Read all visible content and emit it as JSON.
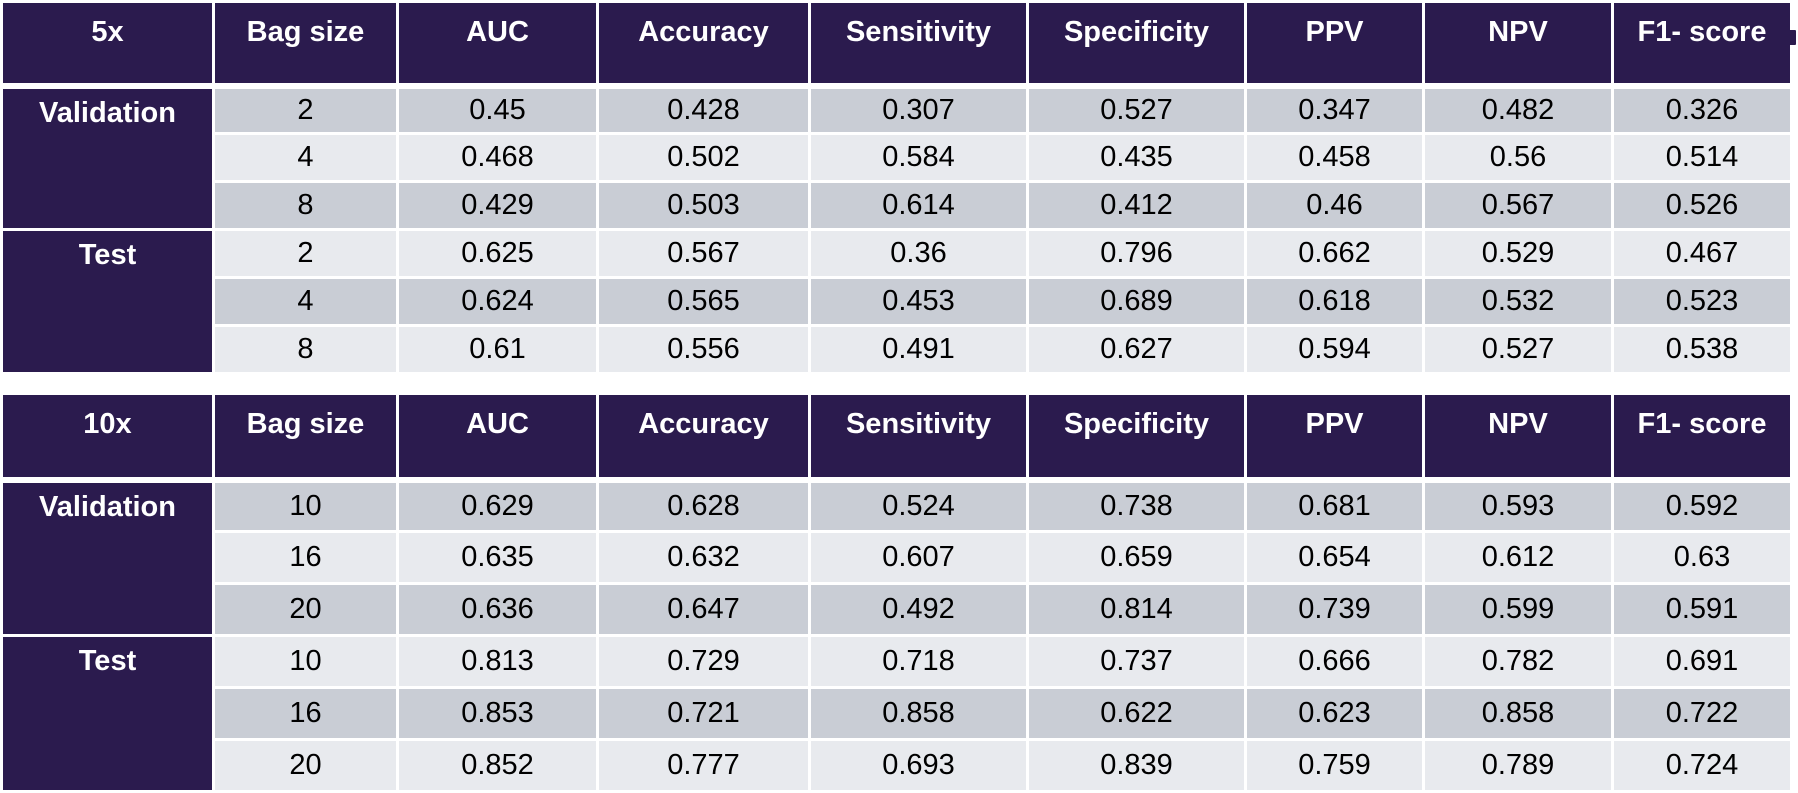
{
  "page": {
    "background": "#ffffff"
  },
  "colors": {
    "header_bg": "#2b1b4e",
    "row_dark": "#c9cdd5",
    "row_light": "#e8eaee",
    "header_text": "#ffffff",
    "body_text": "#000000",
    "gridline": "#ffffff",
    "page_bg": "#ffffff"
  },
  "metric_columns": [
    "Bag size",
    "AUC",
    "Accuracy",
    "Sensitivity",
    "Specificity",
    "PPV",
    "NPV",
    "F1- score"
  ],
  "tables": [
    {
      "label": "5x",
      "groups": [
        {
          "name": "Validation",
          "rows": [
            [
              2,
              0.45,
              0.428,
              0.307,
              0.527,
              0.347,
              0.482,
              0.326
            ],
            [
              4,
              0.468,
              0.502,
              0.584,
              0.435,
              0.458,
              0.56,
              0.514
            ],
            [
              8,
              0.429,
              0.503,
              0.614,
              0.412,
              0.46,
              0.567,
              0.526
            ]
          ]
        },
        {
          "name": "Test",
          "rows": [
            [
              2,
              0.625,
              0.567,
              0.36,
              0.796,
              0.662,
              0.529,
              0.467
            ],
            [
              4,
              0.624,
              0.565,
              0.453,
              0.689,
              0.618,
              0.532,
              0.523
            ],
            [
              8,
              0.61,
              0.556,
              0.491,
              0.627,
              0.594,
              0.527,
              0.538
            ]
          ]
        }
      ]
    },
    {
      "label": "10x",
      "groups": [
        {
          "name": "Validation",
          "rows": [
            [
              10,
              0.629,
              0.628,
              0.524,
              0.738,
              0.681,
              0.593,
              0.592
            ],
            [
              16,
              0.635,
              0.632,
              0.607,
              0.659,
              0.654,
              0.612,
              0.63
            ],
            [
              20,
              0.636,
              0.647,
              0.492,
              0.814,
              0.739,
              0.599,
              0.591
            ]
          ]
        },
        {
          "name": "Test",
          "rows": [
            [
              10,
              0.813,
              0.729,
              0.718,
              0.737,
              0.666,
              0.782,
              0.691
            ],
            [
              16,
              0.853,
              0.721,
              0.858,
              0.622,
              0.623,
              0.858,
              0.722
            ],
            [
              20,
              0.852,
              0.777,
              0.693,
              0.839,
              0.759,
              0.789,
              0.724
            ]
          ]
        }
      ]
    }
  ]
}
